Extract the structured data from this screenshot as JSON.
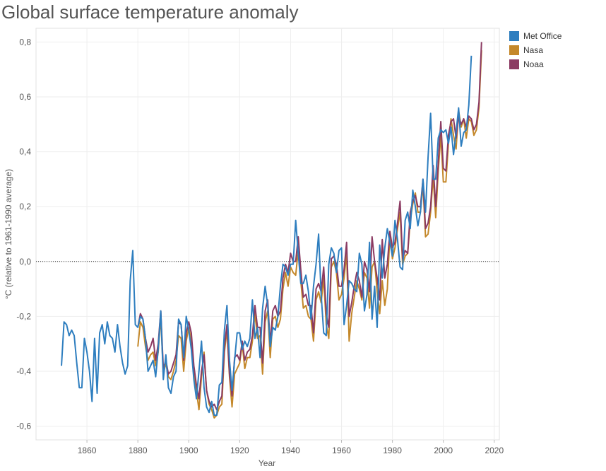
{
  "chart_data": {
    "type": "line",
    "title": "Global surface temperature anomaly",
    "xlabel": "Year",
    "ylabel": "°C (relative to 1961-1990 average)",
    "xlim": [
      1840,
      2022
    ],
    "ylim": [
      -0.65,
      0.85
    ],
    "xticks": [
      {
        "v": 1860,
        "label": "1860"
      },
      {
        "v": 1880,
        "label": "1880"
      },
      {
        "v": 1900,
        "label": "1900"
      },
      {
        "v": 1920,
        "label": "1920"
      },
      {
        "v": 1940,
        "label": "1940"
      },
      {
        "v": 1960,
        "label": "1960"
      },
      {
        "v": 1980,
        "label": "1980"
      },
      {
        "v": 2000,
        "label": "2000"
      },
      {
        "v": 2020,
        "label": "2020"
      }
    ],
    "yticks": [
      {
        "v": -0.6,
        "label": "-0,6"
      },
      {
        "v": -0.4,
        "label": "-0,4"
      },
      {
        "v": -0.2,
        "label": "-0,2"
      },
      {
        "v": 0.0,
        "label": "0,0"
      },
      {
        "v": 0.2,
        "label": "0,2"
      },
      {
        "v": 0.4,
        "label": "0,4"
      },
      {
        "v": 0.6,
        "label": "0,6"
      },
      {
        "v": 0.8,
        "label": "0,8"
      }
    ],
    "reference_line": 0.0,
    "legend_position": "top-right",
    "series": [
      {
        "name": "Met Office",
        "color": "#2e7ebf",
        "start": 1850,
        "values": [
          -0.38,
          -0.22,
          -0.23,
          -0.27,
          -0.25,
          -0.27,
          -0.37,
          -0.46,
          -0.46,
          -0.28,
          -0.33,
          -0.4,
          -0.51,
          -0.28,
          -0.48,
          -0.26,
          -0.23,
          -0.3,
          -0.22,
          -0.27,
          -0.28,
          -0.33,
          -0.23,
          -0.31,
          -0.37,
          -0.41,
          -0.38,
          -0.07,
          0.04,
          -0.23,
          -0.24,
          -0.2,
          -0.21,
          -0.28,
          -0.4,
          -0.38,
          -0.36,
          -0.42,
          -0.32,
          -0.18,
          -0.43,
          -0.34,
          -0.46,
          -0.48,
          -0.42,
          -0.4,
          -0.21,
          -0.23,
          -0.35,
          -0.2,
          -0.25,
          -0.32,
          -0.43,
          -0.5,
          -0.4,
          -0.29,
          -0.46,
          -0.53,
          -0.55,
          -0.51,
          -0.56,
          -0.56,
          -0.45,
          -0.44,
          -0.25,
          -0.16,
          -0.36,
          -0.47,
          -0.36,
          -0.26,
          -0.26,
          -0.32,
          -0.29,
          -0.31,
          -0.28,
          -0.14,
          -0.28,
          -0.24,
          -0.35,
          -0.17,
          -0.09,
          -0.16,
          -0.31,
          -0.24,
          -0.25,
          -0.2,
          -0.09,
          -0.01,
          -0.02,
          -0.05,
          -0.01,
          -0.01,
          0.15,
          0.03,
          -0.08,
          -0.08,
          -0.05,
          -0.11,
          -0.21,
          -0.09,
          -0.01,
          0.1,
          -0.12,
          -0.26,
          -0.27,
          -0.01,
          0.05,
          0.03,
          -0.04,
          0.04,
          0.05,
          -0.23,
          -0.16,
          -0.07,
          -0.08,
          -0.1,
          -0.11,
          0.03,
          -0.01,
          -0.18,
          -0.12,
          0.07,
          -0.21,
          -0.09,
          -0.24,
          0.06,
          -0.06,
          0.05,
          0.12,
          0.07,
          0.02,
          0.15,
          0.08,
          -0.02,
          -0.03,
          0.15,
          0.18,
          0.12,
          0.26,
          0.2,
          0.13,
          0.18,
          0.3,
          0.18,
          0.38,
          0.54,
          0.3,
          0.3,
          0.45,
          0.48,
          0.47,
          0.48,
          0.43,
          0.49,
          0.39,
          0.47,
          0.56,
          0.42,
          0.47,
          0.48,
          0.57,
          0.75
        ]
      },
      {
        "name": "Nasa",
        "color": "#c4882a",
        "start": 1880,
        "values": [
          -0.31,
          -0.22,
          -0.24,
          -0.31,
          -0.36,
          -0.34,
          -0.33,
          -0.38,
          -0.33,
          -0.2,
          -0.41,
          -0.37,
          -0.42,
          -0.43,
          -0.4,
          -0.36,
          -0.27,
          -0.28,
          -0.4,
          -0.29,
          -0.24,
          -0.29,
          -0.41,
          -0.47,
          -0.54,
          -0.42,
          -0.33,
          -0.47,
          -0.52,
          -0.54,
          -0.57,
          -0.56,
          -0.53,
          -0.52,
          -0.33,
          -0.25,
          -0.42,
          -0.53,
          -0.41,
          -0.39,
          -0.37,
          -0.3,
          -0.39,
          -0.35,
          -0.35,
          -0.29,
          -0.19,
          -0.28,
          -0.27,
          -0.41,
          -0.22,
          -0.18,
          -0.35,
          -0.21,
          -0.2,
          -0.24,
          -0.21,
          -0.1,
          -0.04,
          -0.09,
          -0.02,
          -0.04,
          -0.05,
          0.04,
          -0.07,
          -0.17,
          -0.16,
          -0.2,
          -0.21,
          -0.29,
          -0.14,
          -0.11,
          -0.15,
          -0.06,
          -0.23,
          -0.28,
          -0.02,
          0.0,
          -0.04,
          -0.14,
          -0.12,
          -0.06,
          0.03,
          -0.29,
          -0.19,
          -0.13,
          -0.07,
          -0.1,
          -0.14,
          -0.04,
          -0.06,
          -0.17,
          -0.02,
          0.0,
          -0.11,
          -0.19,
          -0.07,
          -0.16,
          -0.1,
          0.1,
          0.01,
          0.05,
          0.12,
          0.18,
          -0.01,
          0.02,
          0.03,
          0.15,
          0.21,
          0.25,
          0.18,
          0.18,
          0.28,
          0.09,
          0.1,
          0.18,
          0.31,
          0.16,
          0.33,
          0.46,
          0.29,
          0.29,
          0.43,
          0.52,
          0.46,
          0.41,
          0.55,
          0.49,
          0.52,
          0.45,
          0.52,
          0.51,
          0.46,
          0.48,
          0.56,
          0.77
        ]
      },
      {
        "name": "Noaa",
        "color": "#8b3a62",
        "start": 1880,
        "values": [
          -0.24,
          -0.19,
          -0.21,
          -0.28,
          -0.33,
          -0.31,
          -0.28,
          -0.36,
          -0.3,
          -0.18,
          -0.39,
          -0.36,
          -0.41,
          -0.4,
          -0.37,
          -0.34,
          -0.22,
          -0.23,
          -0.36,
          -0.26,
          -0.22,
          -0.26,
          -0.38,
          -0.45,
          -0.5,
          -0.4,
          -0.34,
          -0.47,
          -0.51,
          -0.53,
          -0.52,
          -0.54,
          -0.51,
          -0.49,
          -0.31,
          -0.23,
          -0.41,
          -0.49,
          -0.35,
          -0.34,
          -0.36,
          -0.29,
          -0.36,
          -0.33,
          -0.32,
          -0.27,
          -0.16,
          -0.24,
          -0.24,
          -0.37,
          -0.18,
          -0.14,
          -0.3,
          -0.18,
          -0.16,
          -0.2,
          -0.18,
          -0.06,
          -0.01,
          -0.04,
          0.03,
          0.0,
          0.0,
          0.09,
          -0.03,
          -0.13,
          -0.12,
          -0.16,
          -0.16,
          -0.26,
          -0.1,
          -0.08,
          -0.11,
          -0.02,
          -0.19,
          -0.24,
          0.01,
          0.02,
          -0.01,
          -0.09,
          -0.09,
          -0.03,
          0.07,
          -0.2,
          -0.15,
          -0.09,
          -0.04,
          -0.07,
          -0.13,
          0.0,
          -0.03,
          -0.11,
          0.09,
          0.0,
          -0.06,
          -0.14,
          0.08,
          -0.06,
          -0.01,
          0.11,
          0.05,
          0.07,
          0.14,
          0.22,
          0.01,
          0.04,
          0.03,
          0.18,
          0.22,
          0.24,
          0.2,
          0.2,
          0.3,
          0.12,
          0.14,
          0.2,
          0.35,
          0.2,
          0.36,
          0.51,
          0.34,
          0.33,
          0.46,
          0.51,
          0.52,
          0.45,
          0.53,
          0.5,
          0.52,
          0.49,
          0.53,
          0.52,
          0.48,
          0.5,
          0.58,
          0.8
        ]
      }
    ]
  }
}
